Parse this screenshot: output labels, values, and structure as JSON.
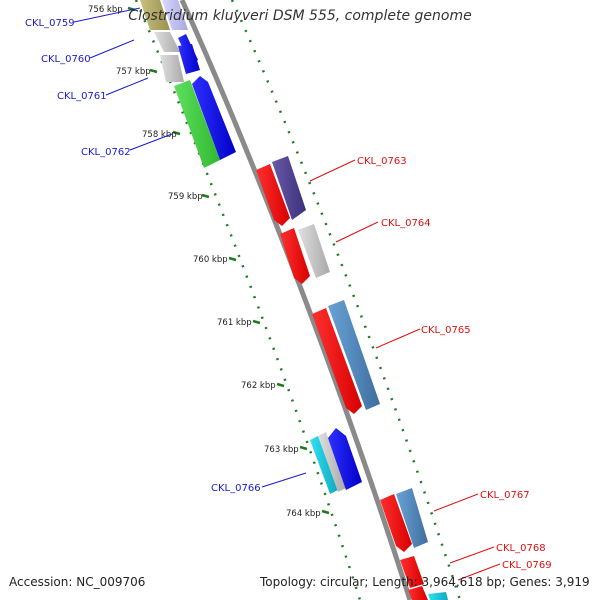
{
  "title": "Clostridium kluyveri DSM 555, complete genome",
  "accession": "Accession: NC_009706",
  "topology": "Topology: circular; Length: 3,964,618 bp; Genes: 3,919",
  "colors": {
    "backbone": "#888888",
    "tick": "#1f7a1f",
    "forward_label": "#1a1acc",
    "reverse_label": "#dd1111"
  },
  "ticks": [
    "756 kbp",
    "757 kbp",
    "758 kbp",
    "759 kbp",
    "760 kbp",
    "761 kbp",
    "762 kbp",
    "763 kbp",
    "764 kbp"
  ],
  "genes": [
    {
      "name": "CKL_0759",
      "side": "left"
    },
    {
      "name": "CKL_0760",
      "side": "left"
    },
    {
      "name": "CKL_0761",
      "side": "left"
    },
    {
      "name": "CKL_0762",
      "side": "left"
    },
    {
      "name": "CKL_0763",
      "side": "right"
    },
    {
      "name": "CKL_0764",
      "side": "right"
    },
    {
      "name": "CKL_0765",
      "side": "right"
    },
    {
      "name": "CKL_0766",
      "side": "left"
    },
    {
      "name": "CKL_0767",
      "side": "right"
    },
    {
      "name": "CKL_0768",
      "side": "right"
    },
    {
      "name": "CKL_0769",
      "side": "right"
    }
  ]
}
